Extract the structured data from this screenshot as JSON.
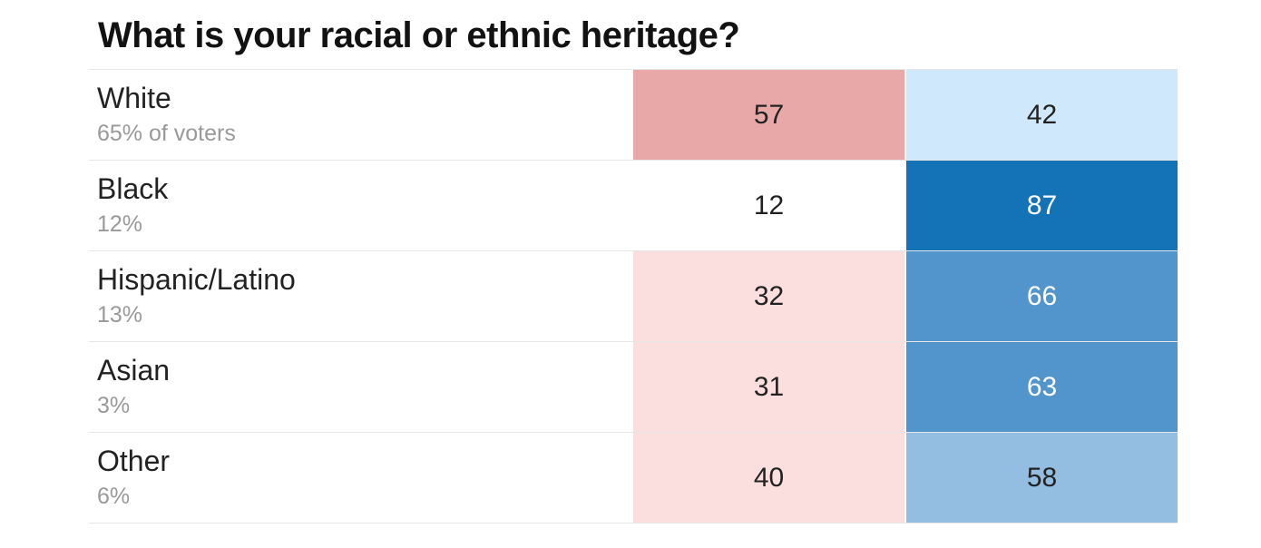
{
  "chart_data": {
    "type": "table",
    "title": "What is your racial or ethnic heritage?",
    "rows": [
      {
        "label": "White",
        "share": "65% of voters",
        "values": [
          57,
          42
        ],
        "colors": [
          "#e8a8a8",
          "#d0e8fb"
        ]
      },
      {
        "label": "Black",
        "share": "12%",
        "values": [
          12,
          87
        ],
        "colors": [
          "#ffffff",
          "#1473b7"
        ]
      },
      {
        "label": "Hispanic/Latino",
        "share": "13%",
        "values": [
          32,
          66
        ],
        "colors": [
          "#fbdfdf",
          "#5195cc"
        ]
      },
      {
        "label": "Asian",
        "share": "3%",
        "values": [
          31,
          63
        ],
        "colors": [
          "#fbdfdf",
          "#5195cc"
        ]
      },
      {
        "label": "Other",
        "share": "6%",
        "values": [
          40,
          58
        ],
        "colors": [
          "#fbdfdf",
          "#93bde1"
        ]
      }
    ]
  }
}
